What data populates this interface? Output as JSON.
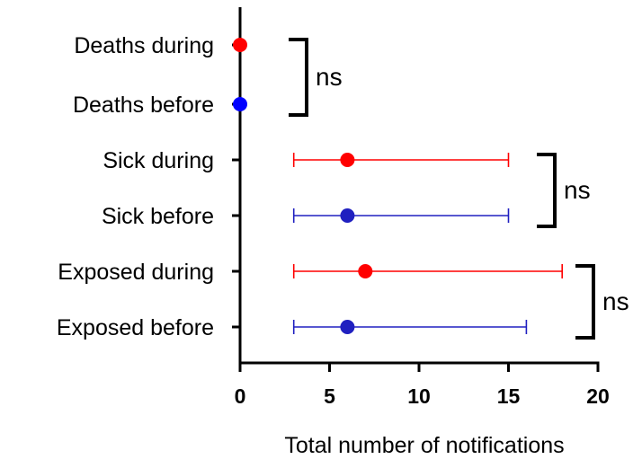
{
  "chart_data": {
    "type": "scatter",
    "orientation": "horizontal",
    "xlabel": "Total number of notifications",
    "xlim": [
      0,
      20
    ],
    "xticks": [
      "0",
      "5",
      "10",
      "15",
      "20"
    ],
    "categories": [
      "Deaths during",
      "Deaths before",
      "Sick during",
      "Sick before",
      "Exposed during",
      "Exposed before"
    ],
    "points": [
      {
        "category": "Deaths during",
        "value": 0,
        "lower": null,
        "upper": null,
        "color": "#ff0000"
      },
      {
        "category": "Deaths before",
        "value": 0,
        "lower": null,
        "upper": null,
        "color": "#0000ff"
      },
      {
        "category": "Sick during",
        "value": 6,
        "lower": 3,
        "upper": 15,
        "color": "#ff0000"
      },
      {
        "category": "Sick before",
        "value": 6,
        "lower": 3,
        "upper": 15,
        "color": "#2020c0"
      },
      {
        "category": "Exposed during",
        "value": 7,
        "lower": 3,
        "upper": 18,
        "color": "#ff0000"
      },
      {
        "category": "Exposed before",
        "value": 6,
        "lower": 3,
        "upper": 16,
        "color": "#2020c0"
      }
    ],
    "annotations": [
      {
        "text": "ns",
        "from": "Deaths during",
        "to": "Deaths before"
      },
      {
        "text": "ns",
        "from": "Sick during",
        "to": "Sick before"
      },
      {
        "text": "ns",
        "from": "Exposed during",
        "to": "Exposed before"
      }
    ],
    "grid": false
  }
}
